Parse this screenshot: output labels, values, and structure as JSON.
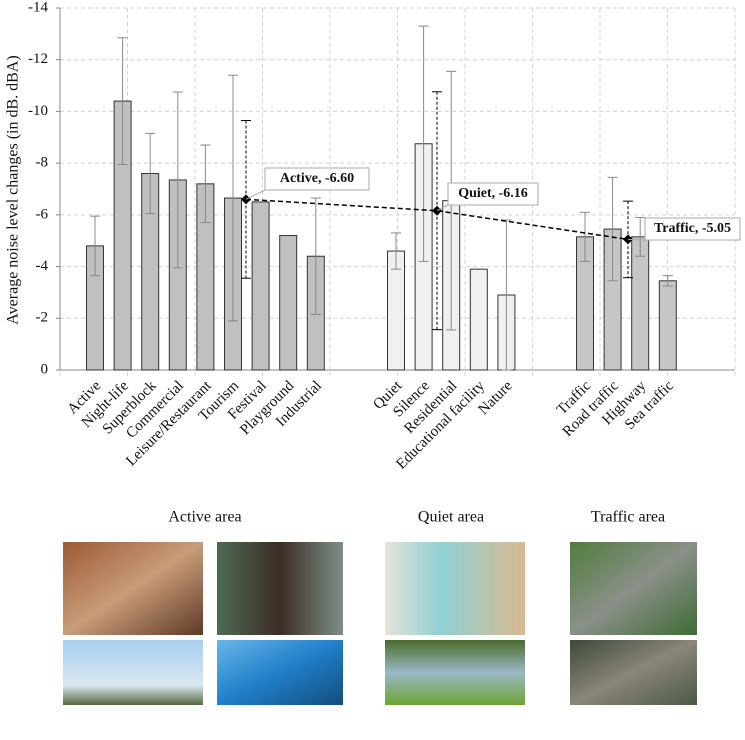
{
  "chart_data": {
    "type": "bar",
    "y_label": "Average noise level changes (in dB. dBA)",
    "ylim": [
      0,
      -14
    ],
    "yticks": [
      0,
      -2,
      -4,
      -6,
      -8,
      -10,
      -12,
      -14
    ],
    "grid": true,
    "groups": [
      {
        "label": "Active area",
        "color": "#c0c0c0",
        "categories": [
          "Active",
          "Night-life",
          "Superblock",
          "Commercial",
          "Leisure/Restaurant",
          "Tourism",
          "Festival",
          "Playground",
          "Industrial"
        ],
        "values": [
          -4.8,
          -10.4,
          -7.6,
          -7.35,
          -7.2,
          -6.65,
          -6.5,
          -5.2,
          -4.4
        ],
        "errors": [
          1.15,
          2.45,
          1.55,
          3.4,
          1.5,
          4.75,
          null,
          null,
          2.25
        ]
      },
      {
        "label": "Quiet area",
        "color": "#f0f0f0",
        "categories": [
          "Quiet",
          "Silence",
          "Residential",
          "Educational facility",
          "Nature"
        ],
        "values": [
          -4.6,
          -8.75,
          -6.55,
          -3.9,
          -2.9
        ],
        "errors": [
          0.7,
          4.55,
          5.0,
          null,
          2.9
        ]
      },
      {
        "label": "Traffic area",
        "color": "#c6c6c6",
        "categories": [
          "Traffic",
          "Road traffic",
          "Highway",
          "Sea traffic"
        ],
        "values": [
          -5.15,
          -5.45,
          -5.15,
          -3.45
        ],
        "errors": [
          0.95,
          2.0,
          0.75,
          0.2
        ]
      }
    ],
    "means": {
      "values": [
        -6.6,
        -6.16,
        -5.05
      ],
      "errors": [
        3.05,
        4.6,
        1.48
      ],
      "value_labels": [
        "Active, -6.60",
        "Quiet, -6.16",
        "Traffic, -5.05"
      ]
    }
  }
}
